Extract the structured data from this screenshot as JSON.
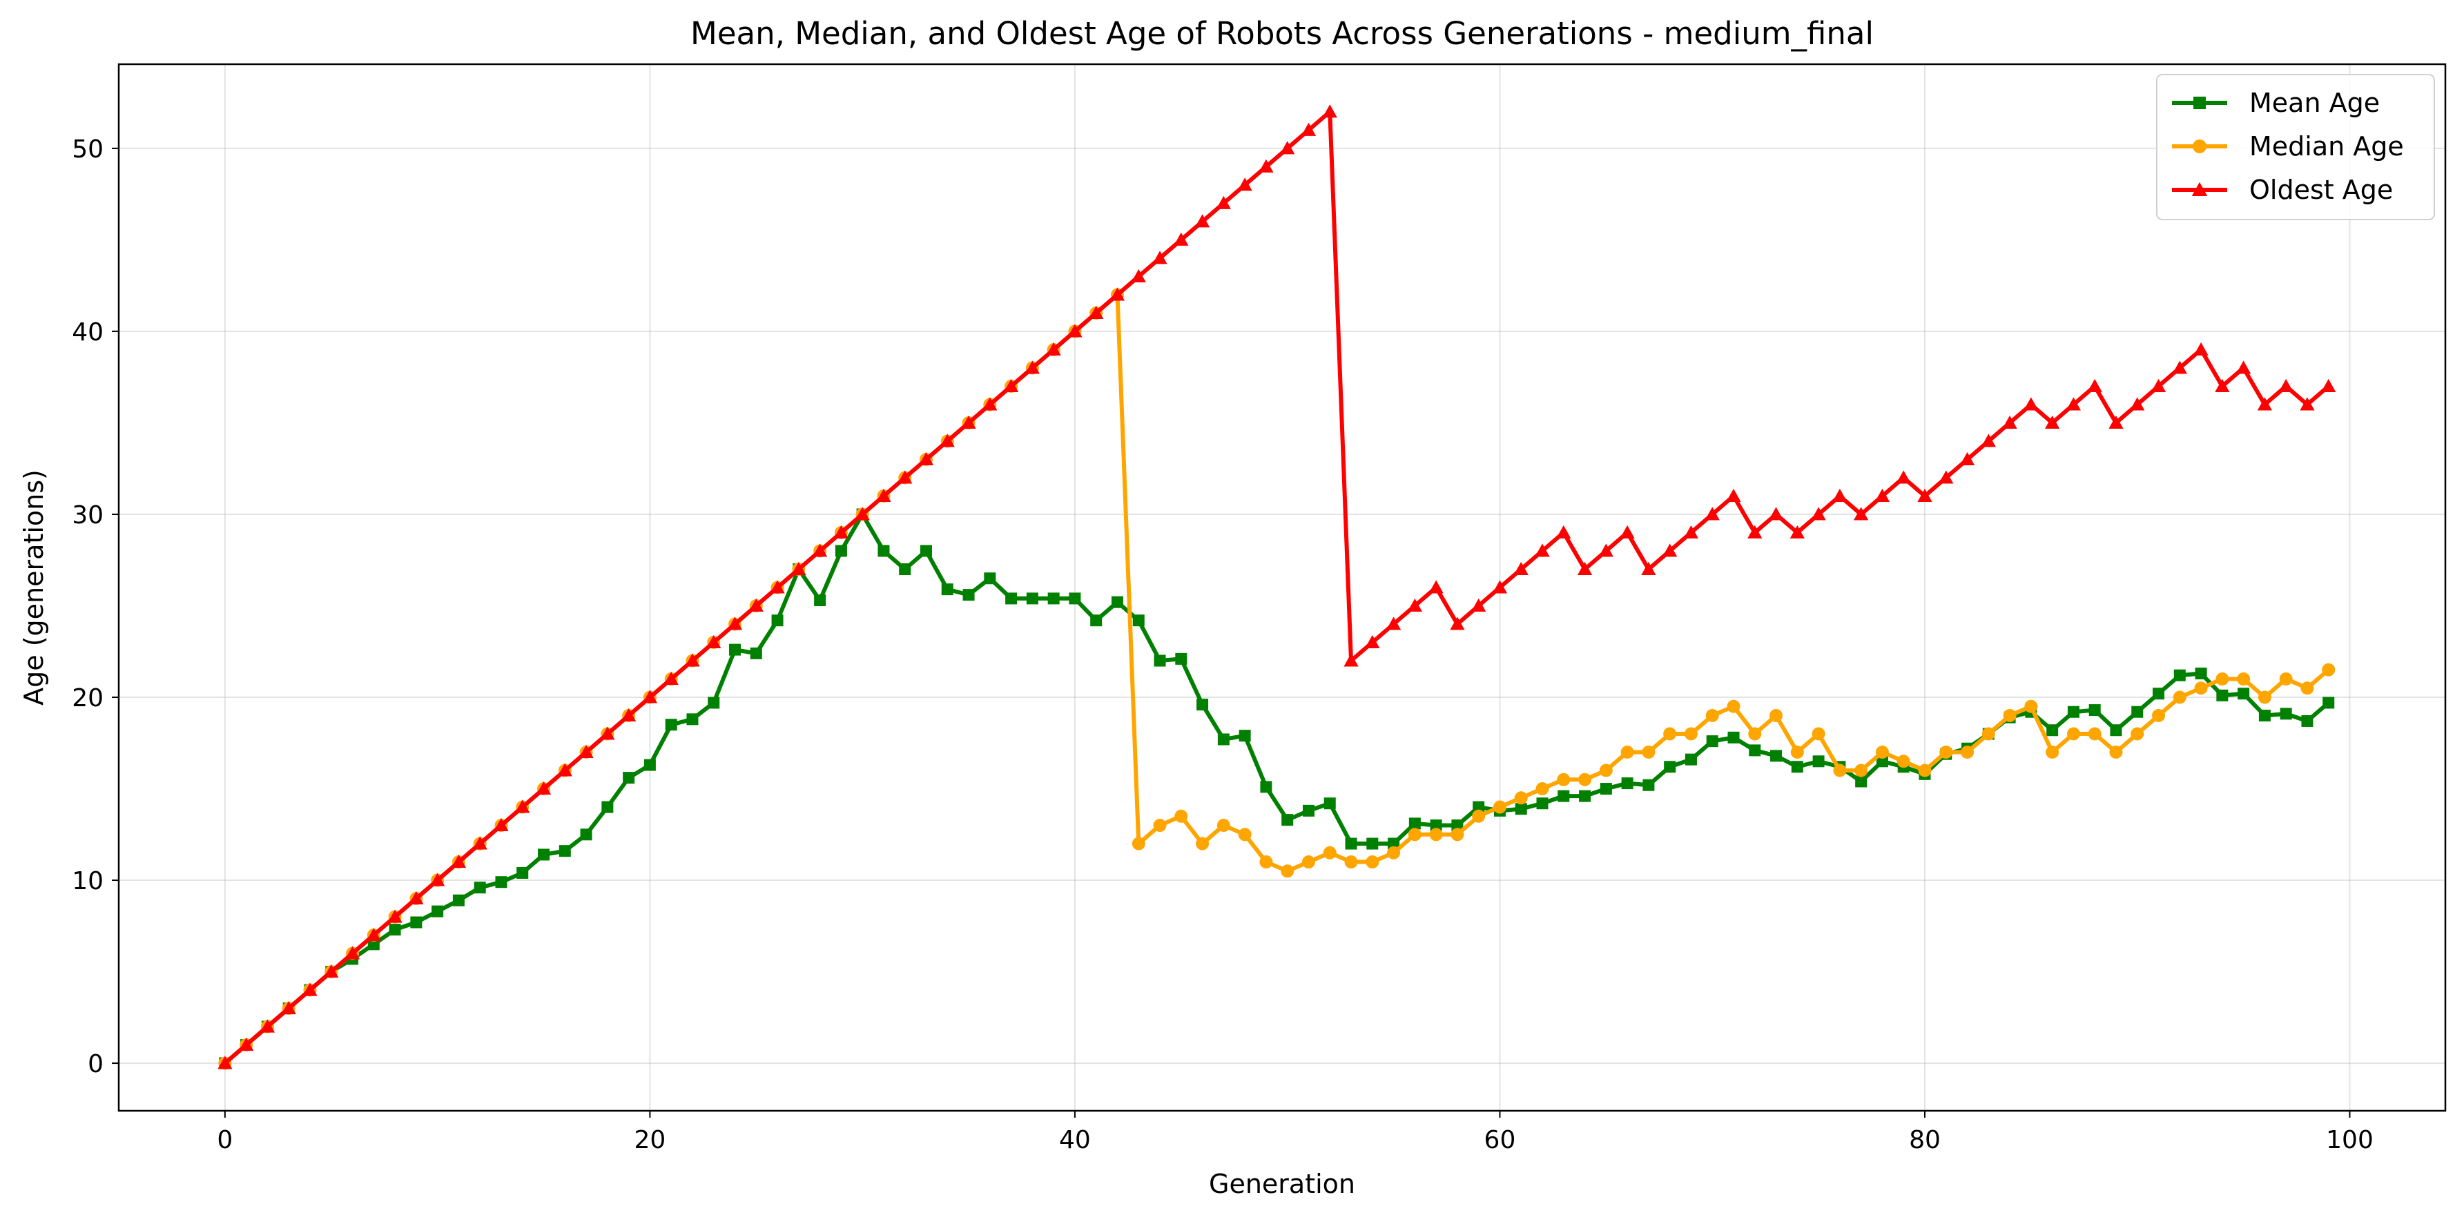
{
  "chart_data": {
    "type": "line",
    "title": "Mean, Median, and Oldest Age of Robots Across Generations - medium_final",
    "xlabel": "Generation",
    "ylabel": "Age (generations)",
    "xlim": [
      -5,
      104.5
    ],
    "ylim": [
      -2.6,
      54.6
    ],
    "x_ticks": [
      0,
      20,
      40,
      60,
      80,
      100
    ],
    "y_ticks": [
      0,
      10,
      20,
      30,
      40,
      50
    ],
    "grid": true,
    "legend_position": "top-right",
    "series": [
      {
        "name": "Mean Age",
        "color": "#008000",
        "marker": "square",
        "x": [
          0,
          1,
          2,
          3,
          4,
          5,
          6,
          7,
          8,
          9,
          10,
          11,
          12,
          13,
          14,
          15,
          16,
          17,
          18,
          19,
          20,
          21,
          22,
          23,
          24,
          25,
          26,
          27,
          28,
          29,
          30,
          31,
          32,
          33,
          34,
          35,
          36,
          37,
          38,
          39,
          40,
          41,
          42,
          43,
          44,
          45,
          46,
          47,
          48,
          49,
          50,
          51,
          52,
          53,
          54,
          55,
          56,
          57,
          58,
          59,
          60,
          61,
          62,
          63,
          64,
          65,
          66,
          67,
          68,
          69,
          70,
          71,
          72,
          73,
          74,
          75,
          76,
          77,
          78,
          79,
          80,
          81,
          82,
          83,
          84,
          85,
          86,
          87,
          88,
          89,
          90,
          91,
          92,
          93,
          94,
          95,
          96,
          97,
          98,
          99
        ],
        "values": [
          0,
          1,
          2,
          3,
          4,
          5,
          5.7,
          6.5,
          7.3,
          7.7,
          8.3,
          8.9,
          9.6,
          9.9,
          10.4,
          11.4,
          11.6,
          12.5,
          14,
          15.6,
          16.3,
          18.5,
          18.8,
          19.7,
          22.6,
          22.4,
          24.2,
          27,
          25.3,
          28,
          30,
          28,
          27,
          28,
          25.9,
          25.6,
          26.5,
          25.4,
          25.4,
          25.4,
          25.4,
          24.2,
          25.2,
          24.2,
          22,
          22.1,
          19.6,
          17.7,
          17.9,
          15.1,
          13.3,
          13.8,
          14.2,
          12,
          12,
          12,
          13.1,
          13,
          13,
          14,
          13.8,
          13.9,
          14.2,
          14.6,
          14.6,
          15,
          15.3,
          15.2,
          16.2,
          16.6,
          17.6,
          17.8,
          17.1,
          16.8,
          16.2,
          16.5,
          16.2,
          15.4,
          16.5,
          16.2,
          15.8,
          16.9,
          17.2,
          18,
          18.9,
          19.2,
          18.2,
          19.2,
          19.3,
          18.2,
          19.2,
          20.2,
          21.2,
          21.3,
          20.1,
          20.2,
          19,
          19.1,
          18.7,
          19.7
        ]
      },
      {
        "name": "Median Age",
        "color": "#ffa500",
        "marker": "circle",
        "x": [
          0,
          1,
          2,
          3,
          4,
          5,
          6,
          7,
          8,
          9,
          10,
          11,
          12,
          13,
          14,
          15,
          16,
          17,
          18,
          19,
          20,
          21,
          22,
          23,
          24,
          25,
          26,
          27,
          28,
          29,
          30,
          31,
          32,
          33,
          34,
          35,
          36,
          37,
          38,
          39,
          40,
          41,
          42,
          43,
          44,
          45,
          46,
          47,
          48,
          49,
          50,
          51,
          52,
          53,
          54,
          55,
          56,
          57,
          58,
          59,
          60,
          61,
          62,
          63,
          64,
          65,
          66,
          67,
          68,
          69,
          70,
          71,
          72,
          73,
          74,
          75,
          76,
          77,
          78,
          79,
          80,
          81,
          82,
          83,
          84,
          85,
          86,
          87,
          88,
          89,
          90,
          91,
          92,
          93,
          94,
          95,
          96,
          97,
          98,
          99
        ],
        "values": [
          0,
          1,
          2,
          3,
          4,
          5,
          6,
          7,
          8,
          9,
          10,
          11,
          12,
          13,
          14,
          15,
          16,
          17,
          18,
          19,
          20,
          21,
          22,
          23,
          24,
          25,
          26,
          27,
          28,
          29,
          30,
          31,
          32,
          33,
          34,
          35,
          36,
          37,
          38,
          39,
          40,
          41,
          42,
          12,
          13,
          13.5,
          12,
          13,
          12.5,
          11,
          10.5,
          11,
          11.5,
          11,
          11,
          11.5,
          12.5,
          12.5,
          12.5,
          13.5,
          14,
          14.5,
          15,
          15.5,
          15.5,
          16,
          17,
          17,
          18,
          18,
          19,
          19.5,
          18,
          19,
          17,
          18,
          16,
          16,
          17,
          16.5,
          16,
          17,
          17,
          18,
          19,
          19.5,
          17,
          18,
          18,
          17,
          18,
          19,
          20,
          20.5,
          21,
          21,
          20,
          21,
          20.5,
          21.5
        ]
      },
      {
        "name": "Oldest Age",
        "color": "#ff0000",
        "marker": "triangle",
        "x": [
          0,
          1,
          2,
          3,
          4,
          5,
          6,
          7,
          8,
          9,
          10,
          11,
          12,
          13,
          14,
          15,
          16,
          17,
          18,
          19,
          20,
          21,
          22,
          23,
          24,
          25,
          26,
          27,
          28,
          29,
          30,
          31,
          32,
          33,
          34,
          35,
          36,
          37,
          38,
          39,
          40,
          41,
          42,
          43,
          44,
          45,
          46,
          47,
          48,
          49,
          50,
          51,
          52,
          53,
          54,
          55,
          56,
          57,
          58,
          59,
          60,
          61,
          62,
          63,
          64,
          65,
          66,
          67,
          68,
          69,
          70,
          71,
          72,
          73,
          74,
          75,
          76,
          77,
          78,
          79,
          80,
          81,
          82,
          83,
          84,
          85,
          86,
          87,
          88,
          89,
          90,
          91,
          92,
          93,
          94,
          95,
          96,
          97,
          98,
          99
        ],
        "values": [
          0,
          1,
          2,
          3,
          4,
          5,
          6,
          7,
          8,
          9,
          10,
          11,
          12,
          13,
          14,
          15,
          16,
          17,
          18,
          19,
          20,
          21,
          22,
          23,
          24,
          25,
          26,
          27,
          28,
          29,
          30,
          31,
          32,
          33,
          34,
          35,
          36,
          37,
          38,
          39,
          40,
          41,
          42,
          43,
          44,
          45,
          46,
          47,
          48,
          49,
          50,
          51,
          52,
          22,
          23,
          24,
          25,
          26,
          24,
          25,
          26,
          27,
          28,
          29,
          27,
          28,
          29,
          27,
          28,
          29,
          30,
          31,
          29,
          30,
          29,
          30,
          31,
          30,
          31,
          32,
          31,
          32,
          33,
          34,
          35,
          36,
          35,
          36,
          37,
          35,
          36,
          37,
          38,
          39,
          37,
          38,
          36,
          37,
          36,
          37
        ]
      }
    ]
  }
}
